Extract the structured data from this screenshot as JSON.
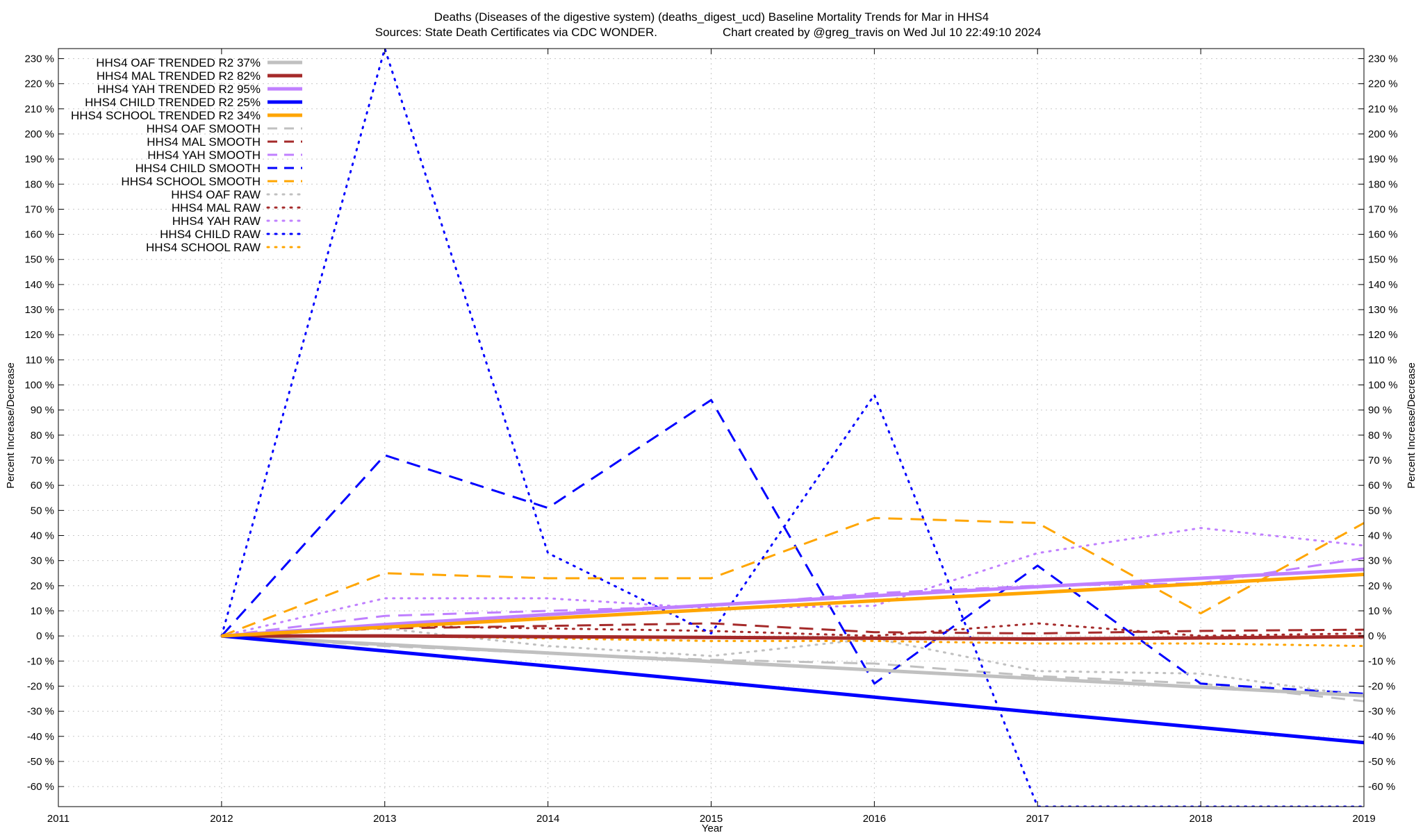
{
  "chart_data": {
    "type": "line",
    "title_line1": "Deaths (Diseases of the digestive system) (deaths_digest_ucd)  Baseline Mortality Trends for Mar in HHS4",
    "title_line2_left": "Sources: State Death Certificates via CDC WONDER.",
    "title_line2_right": "Chart created by @greg_travis on Wed Jul 10 22:49:10 2024",
    "xlabel": "Year",
    "ylabel": "Percent Increase/Decrease",
    "xlim": [
      2011,
      2019
    ],
    "ylim": [
      -68,
      234
    ],
    "x_ticks": [
      2011,
      2012,
      2013,
      2014,
      2015,
      2016,
      2017,
      2018,
      2019
    ],
    "y_ticks": [
      -60,
      -50,
      -40,
      -30,
      -20,
      -10,
      0,
      10,
      20,
      30,
      40,
      50,
      60,
      70,
      80,
      90,
      100,
      110,
      120,
      130,
      140,
      150,
      160,
      170,
      180,
      190,
      200,
      210,
      220,
      230
    ],
    "y_tick_suffix": " %",
    "legend_position": "top-left",
    "x": [
      2012,
      2013,
      2014,
      2015,
      2016,
      2017,
      2018,
      2019
    ],
    "series": [
      {
        "name": "HHS4 OAF TRENDED R2  37%",
        "style": "solid",
        "color": "#c0c0c0",
        "values": [
          0,
          -3.4,
          -6.8,
          -10.2,
          -13.6,
          -17,
          -20.4,
          -23.8
        ]
      },
      {
        "name": "HHS4 MAL TRENDED R2  82%",
        "style": "solid",
        "color": "#a52a2a",
        "values": [
          0,
          0,
          -0.3,
          -0.6,
          -0.9,
          -1.2,
          -0.8,
          -0.3
        ]
      },
      {
        "name": "HHS4 YAH TRENDED R2  95%",
        "style": "solid",
        "color": "#c080ff",
        "values": [
          0,
          4.5,
          8.5,
          12.3,
          16,
          19.6,
          23,
          26.5
        ]
      },
      {
        "name": "HHS4 CHILD TRENDED R2  25%",
        "style": "solid",
        "color": "#0000ff",
        "values": [
          0,
          -6,
          -12,
          -18.2,
          -24.4,
          -30.5,
          -36.5,
          -42.5
        ]
      },
      {
        "name": "HHS4 SCHOOL TRENDED R2  34%",
        "style": "solid",
        "color": "#ffa500",
        "values": [
          0,
          3.5,
          7,
          10.5,
          14,
          17.3,
          20.8,
          24.5
        ]
      },
      {
        "name": "HHS4 OAF SMOOTH",
        "style": "dashed",
        "color": "#c0c0c0",
        "values": [
          0,
          -4,
          -7,
          -9.5,
          -11,
          -16,
          -19,
          -26
        ]
      },
      {
        "name": "HHS4 MAL SMOOTH",
        "style": "dashed",
        "color": "#a52a2a",
        "values": [
          0,
          3,
          4,
          5,
          1.5,
          1,
          2,
          2.5
        ]
      },
      {
        "name": "HHS4 YAH SMOOTH",
        "style": "dashed",
        "color": "#c080ff",
        "values": [
          0,
          8,
          10,
          12,
          17,
          20,
          21,
          31
        ]
      },
      {
        "name": "HHS4 CHILD SMOOTH",
        "style": "dashed",
        "color": "#0000ff",
        "values": [
          0,
          72,
          51,
          94,
          -19,
          28,
          -19,
          -23
        ]
      },
      {
        "name": "HHS4 SCHOOL SMOOTH",
        "style": "dashed",
        "color": "#ffa500",
        "values": [
          0,
          25,
          23,
          23,
          47,
          45,
          9,
          45
        ]
      },
      {
        "name": "HHS4 OAF RAW",
        "style": "dotted",
        "color": "#c0c0c0",
        "values": [
          0,
          3,
          -4,
          -8,
          -1,
          -14,
          -15,
          -24
        ]
      },
      {
        "name": "HHS4 MAL RAW",
        "style": "dotted",
        "color": "#a52a2a",
        "values": [
          0,
          4,
          3,
          2,
          0,
          5,
          0,
          1
        ]
      },
      {
        "name": "HHS4 YAH RAW",
        "style": "dotted",
        "color": "#c080ff",
        "values": [
          0,
          15,
          15,
          11,
          12,
          33,
          43,
          36
        ]
      },
      {
        "name": "HHS4 CHILD RAW",
        "style": "dotted",
        "color": "#0000ff",
        "values": [
          0,
          234,
          33,
          1,
          96,
          -68,
          -68,
          -68
        ]
      },
      {
        "name": "HHS4 SCHOOL RAW",
        "style": "dotted",
        "color": "#ffa500",
        "values": [
          0,
          0,
          -1,
          -2,
          -2,
          -3,
          -3,
          -4
        ]
      }
    ],
    "grid": true
  }
}
